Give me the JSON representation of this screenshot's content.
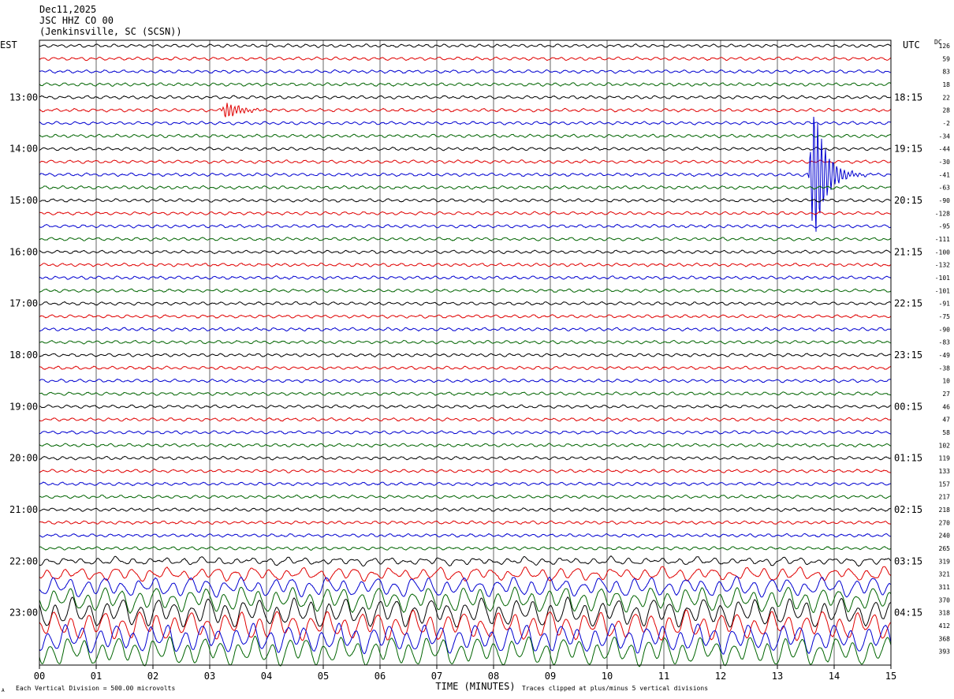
{
  "header": {
    "date": "Dec11,2025",
    "station": "JSC HHZ CO 00",
    "location": "(Jenkinsville, SC (SCSN))"
  },
  "labels": {
    "left_zone": "EST",
    "right_zone": "UTC",
    "dc": "DC"
  },
  "footer": {
    "scale": "Each Vertical Division =  500.00 microvolts",
    "clip": "Traces clipped at plus/minus 5 vertical divisions",
    "corner": "A"
  },
  "colors": {
    "traces": [
      "#000000",
      "#e00000",
      "#0000d0",
      "#006400"
    ],
    "grid": "#000000"
  },
  "chart_data": {
    "type": "line",
    "xlabel": "TIME (MINUTES)",
    "x_ticks": [
      "00",
      "01",
      "02",
      "03",
      "04",
      "05",
      "06",
      "07",
      "08",
      "09",
      "10",
      "11",
      "12",
      "13",
      "14",
      "15"
    ],
    "xlim": [
      0,
      15
    ],
    "est_hours": [
      "13:00",
      "14:00",
      "15:00",
      "16:00",
      "17:00",
      "18:00",
      "19:00",
      "20:00",
      "21:00",
      "22:00",
      "23:00"
    ],
    "utc_hours": [
      "18:15",
      "19:15",
      "20:15",
      "21:15",
      "22:15",
      "23:15",
      "00:15",
      "01:15",
      "02:15",
      "03:15",
      "04:15"
    ],
    "dc_offsets": [
      "126",
      "59",
      "83",
      "18",
      "22",
      "28",
      "-2",
      "-34",
      "-44",
      "-30",
      "-41",
      "-63",
      "-90",
      "-128",
      "-95",
      "-111",
      "-100",
      "-132",
      "-101",
      "-101",
      "-91",
      "-75",
      "-90",
      "-83",
      "-49",
      "-38",
      "10",
      "27",
      "46",
      "47",
      "58",
      "102",
      "119",
      "133",
      "157",
      "217",
      "218",
      "270",
      "240",
      "265",
      "319",
      "321",
      "311",
      "370",
      "318",
      "412",
      "368",
      "393"
    ],
    "events": [
      {
        "trace": 5,
        "minute": 3.3,
        "amplitude": 10
      },
      {
        "trace": 10,
        "minute": 13.65,
        "amplitude": 90
      }
    ]
  }
}
